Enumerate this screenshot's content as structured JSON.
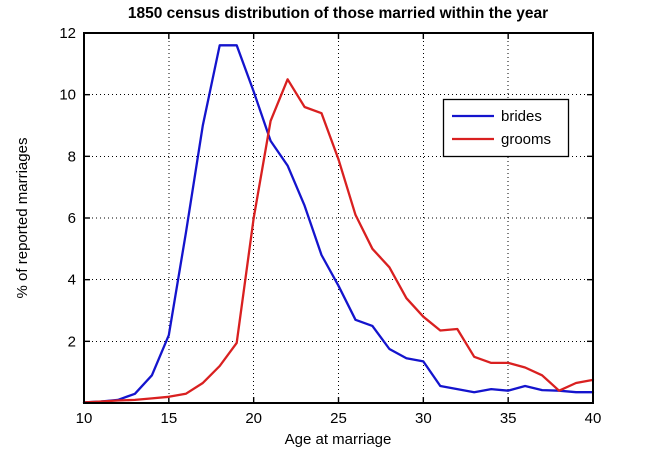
{
  "figure": {
    "title": "1850 census distribution of those married within the year",
    "xlabel": "Age at marriage",
    "ylabel": "% of reported marriages"
  },
  "legend": {
    "items": [
      "brides",
      "grooms"
    ],
    "position": "upper right"
  },
  "colors": {
    "brides": "#1414cd",
    "grooms": "#d92020",
    "axis": "#000000",
    "grid": "#000000",
    "background": "#ffffff"
  },
  "chart_data": {
    "type": "line",
    "title": "1850 census distribution of those married within the year",
    "xlabel": "Age at marriage",
    "ylabel": "% of reported marriages",
    "x": [
      10,
      11,
      12,
      13,
      14,
      15,
      16,
      17,
      18,
      19,
      20,
      21,
      22,
      23,
      24,
      25,
      26,
      27,
      28,
      29,
      30,
      31,
      32,
      33,
      34,
      35,
      36,
      37,
      38,
      39,
      40
    ],
    "series": [
      {
        "name": "brides",
        "color": "#1414cd",
        "values": [
          0.02,
          0.05,
          0.1,
          0.3,
          0.9,
          2.2,
          5.5,
          9.0,
          11.6,
          11.6,
          10.1,
          8.5,
          7.7,
          6.4,
          4.8,
          3.8,
          2.7,
          2.5,
          1.75,
          1.45,
          1.35,
          0.55,
          0.45,
          0.35,
          0.45,
          0.4,
          0.55,
          0.42,
          0.4,
          0.35,
          0.35
        ]
      },
      {
        "name": "grooms",
        "color": "#d92020",
        "values": [
          0.02,
          0.05,
          0.08,
          0.1,
          0.15,
          0.2,
          0.3,
          0.65,
          1.2,
          1.95,
          6.0,
          9.15,
          10.5,
          9.6,
          9.4,
          7.9,
          6.1,
          5.0,
          4.4,
          3.4,
          2.8,
          2.35,
          2.4,
          1.5,
          1.3,
          1.3,
          1.15,
          0.9,
          0.4,
          0.65,
          0.75
        ]
      }
    ],
    "xlim": [
      10,
      40
    ],
    "ylim": [
      0,
      12
    ],
    "xticks": [
      10,
      15,
      20,
      25,
      30,
      35,
      40
    ],
    "yticks": [
      2,
      4,
      6,
      8,
      10,
      12
    ],
    "grid": true,
    "grid_style": "dotted",
    "legend_position": "upper right"
  }
}
